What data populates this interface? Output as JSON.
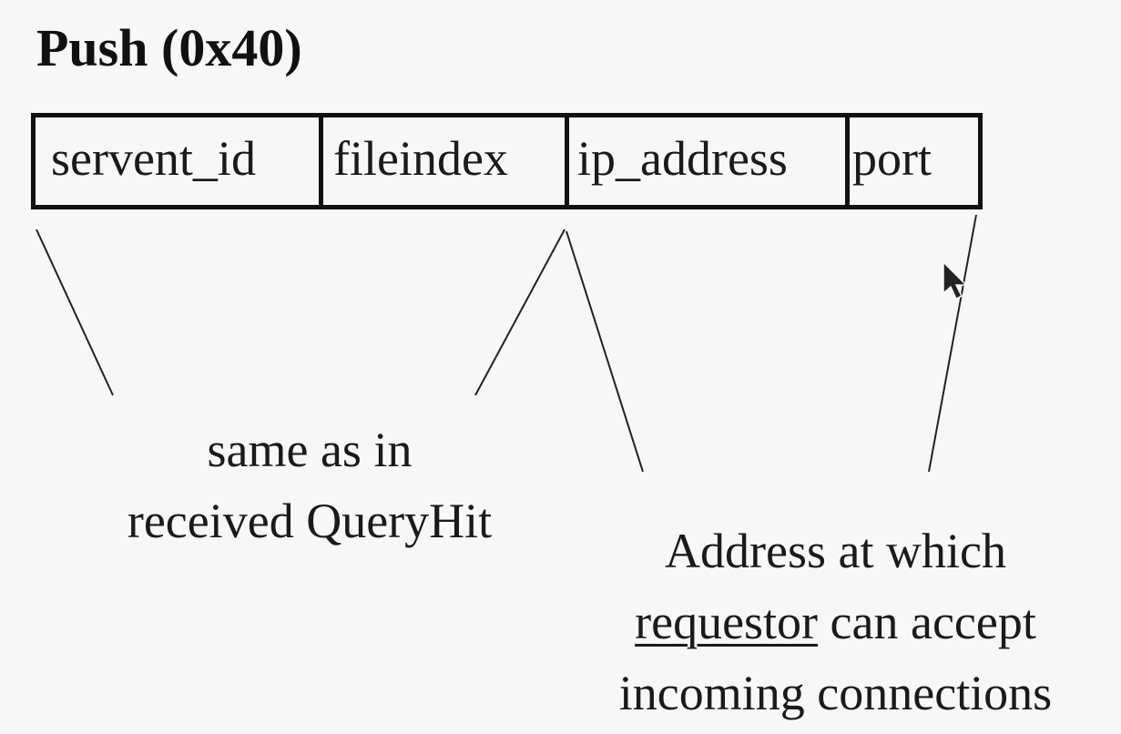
{
  "title": "Push (0x40)",
  "fields": [
    {
      "label": "servent_id"
    },
    {
      "label": "fileindex"
    },
    {
      "label": "ip_address"
    },
    {
      "label": "port"
    }
  ],
  "captions": {
    "left": {
      "line1": "same as in",
      "line2": "received QueryHit"
    },
    "right": {
      "line1": "Address at which",
      "line2_underlined": "requestor",
      "line2_rest": " can accept",
      "line3": "incoming connections"
    }
  },
  "colors": {
    "background": "#f7f7f7",
    "ink": "#111111"
  },
  "icons": {
    "cursor": "mouse-pointer-icon"
  }
}
